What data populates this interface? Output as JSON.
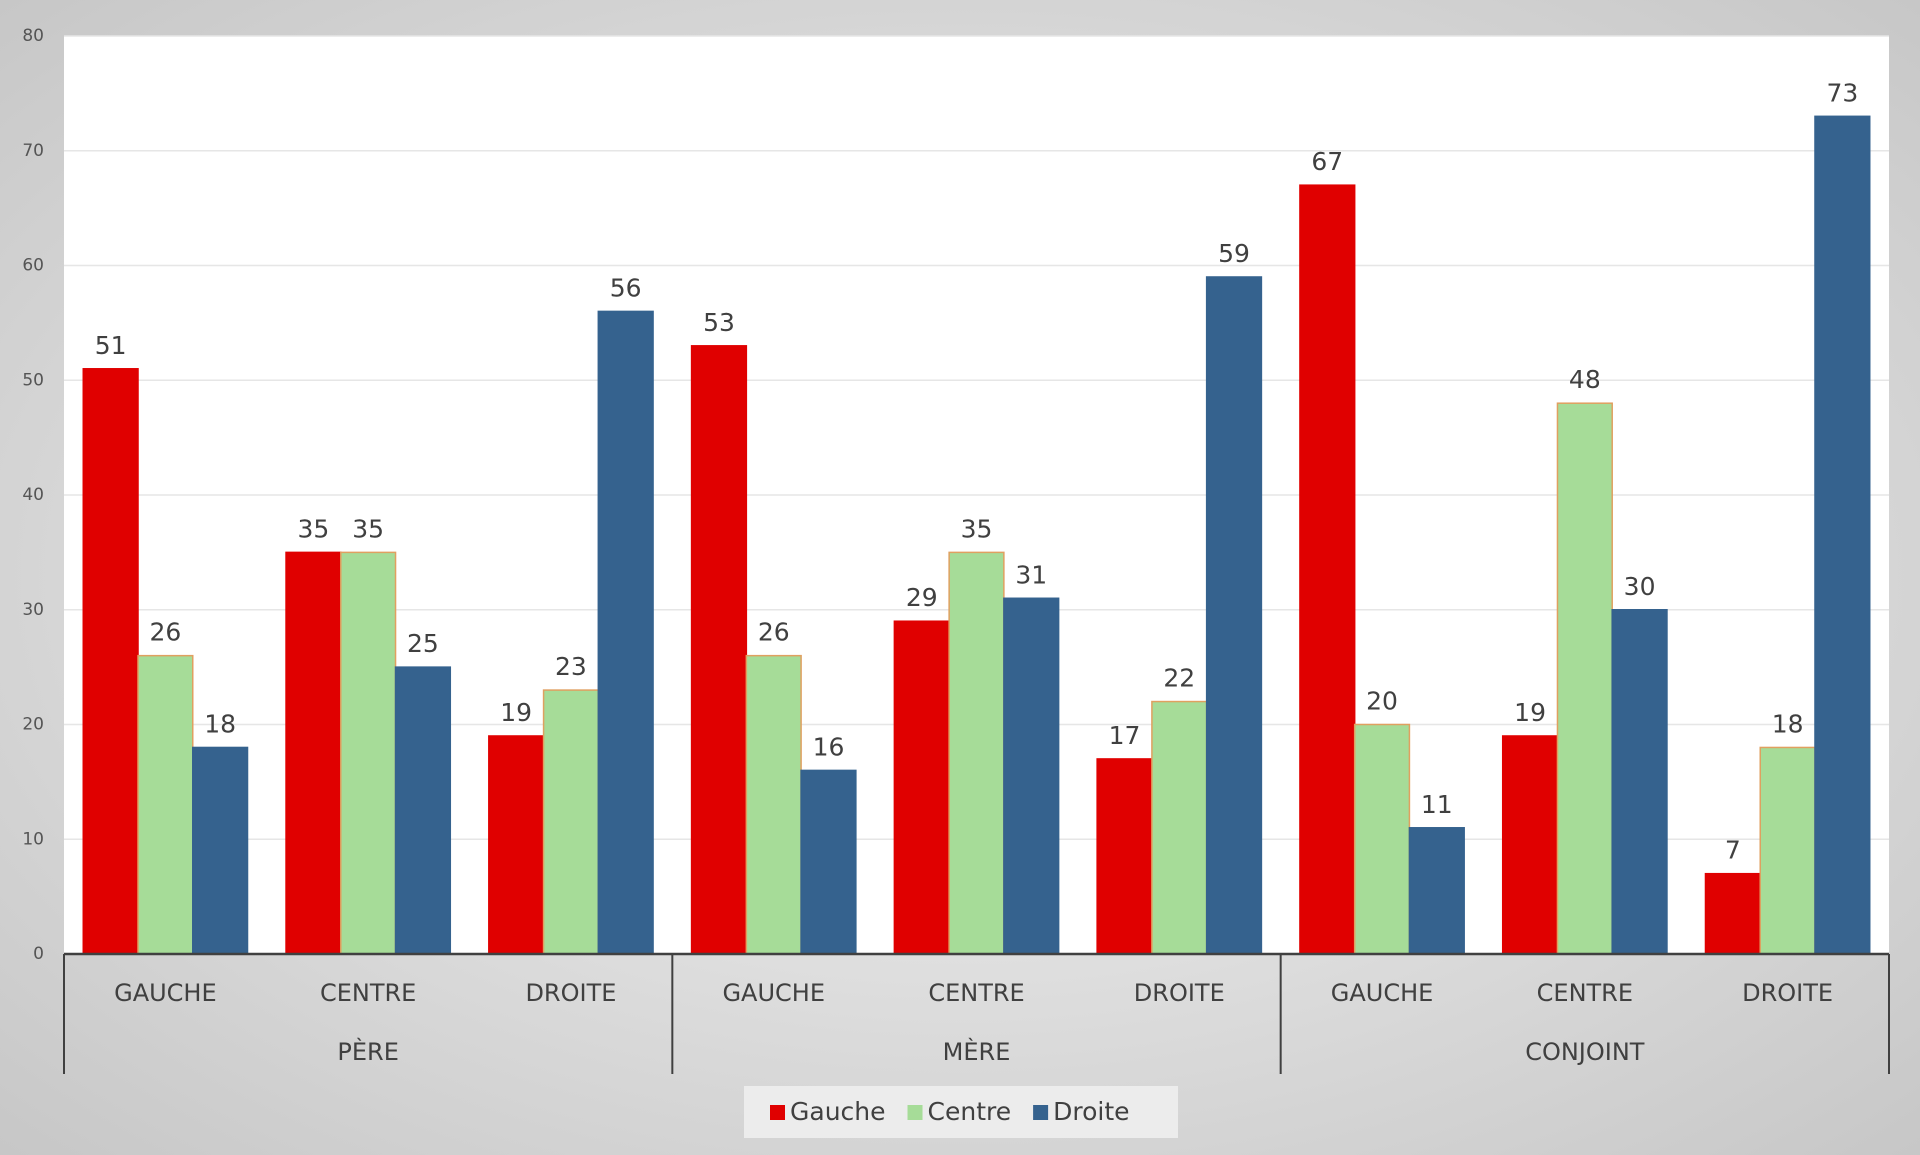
{
  "chart_data": {
    "type": "bar",
    "groups": [
      {
        "name": "PÈRE",
        "categories": [
          "GAUCHE",
          "CENTRE",
          "DROITE"
        ]
      },
      {
        "name": "MÈRE",
        "categories": [
          "GAUCHE",
          "CENTRE",
          "DROITE"
        ]
      },
      {
        "name": "CONJOINT",
        "categories": [
          "GAUCHE",
          "CENTRE",
          "DROITE"
        ]
      }
    ],
    "series": [
      {
        "name": "Gauche",
        "color": "#e00000",
        "values": [
          51,
          35,
          19,
          53,
          29,
          17,
          67,
          19,
          7
        ]
      },
      {
        "name": "Centre",
        "color": "#a6dc98",
        "values": [
          26,
          35,
          23,
          26,
          35,
          22,
          20,
          48,
          18
        ]
      },
      {
        "name": "Droite",
        "color": "#35628e",
        "values": [
          18,
          25,
          56,
          16,
          31,
          59,
          11,
          30,
          73
        ]
      }
    ],
    "ylim": [
      0,
      80
    ],
    "yticks": [
      0,
      10,
      20,
      30,
      40,
      50,
      60,
      70,
      80
    ],
    "grid": true,
    "legend": "bottom"
  }
}
